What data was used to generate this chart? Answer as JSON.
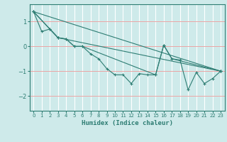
{
  "xlabel": "Humidex (Indice chaleur)",
  "background_color": "#ceeaea",
  "grid_color": "#ffffff",
  "line_color": "#2e7d73",
  "xlim": [
    -0.5,
    23.5
  ],
  "ylim": [
    -2.6,
    1.7
  ],
  "yticks": [
    -2,
    -1,
    0,
    1
  ],
  "xticks": [
    0,
    1,
    2,
    3,
    4,
    5,
    6,
    7,
    8,
    9,
    10,
    11,
    12,
    13,
    14,
    15,
    16,
    17,
    18,
    19,
    20,
    21,
    22,
    23
  ],
  "series": [
    {
      "x": [
        0,
        1,
        2,
        3,
        4,
        5,
        6,
        7,
        8,
        9,
        10,
        11,
        12,
        13,
        14,
        15,
        16,
        17,
        18,
        19,
        20,
        21,
        22,
        23
      ],
      "y": [
        1.4,
        0.6,
        0.7,
        0.35,
        0.3,
        0.0,
        0.0,
        -0.3,
        -0.5,
        -0.9,
        -1.15,
        -1.15,
        -1.5,
        -1.1,
        -1.15,
        -1.15,
        0.05,
        -0.5,
        -0.55,
        -1.75,
        -1.05,
        -1.5,
        -1.3,
        -1.0
      ]
    },
    {
      "x": [
        0,
        2,
        3,
        4,
        5,
        6,
        15,
        16,
        17,
        23
      ],
      "y": [
        1.4,
        0.7,
        0.35,
        0.3,
        0.0,
        0.0,
        -1.15,
        0.05,
        -0.5,
        -1.0
      ]
    },
    {
      "x": [
        0,
        3,
        23
      ],
      "y": [
        1.4,
        0.35,
        -1.0
      ]
    },
    {
      "x": [
        0,
        23
      ],
      "y": [
        1.4,
        -1.0
      ]
    }
  ]
}
